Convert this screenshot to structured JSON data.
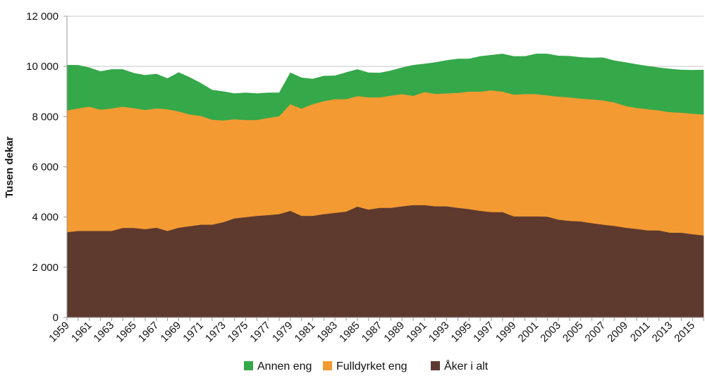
{
  "chart_data": {
    "type": "area",
    "stacked": true,
    "title": "",
    "xlabel": "",
    "ylabel": "Tusen dekar",
    "ylim": [
      0,
      12000
    ],
    "yticks": [
      0,
      2000,
      4000,
      6000,
      8000,
      10000,
      12000
    ],
    "ytick_labels": [
      "0",
      "2 000",
      "4 000",
      "6 000",
      "8 000",
      "10 000",
      "12 000"
    ],
    "grid": true,
    "legend_position": "bottom",
    "x": [
      1959,
      1960,
      1961,
      1962,
      1963,
      1964,
      1965,
      1966,
      1967,
      1968,
      1969,
      1970,
      1971,
      1972,
      1973,
      1974,
      1975,
      1976,
      1977,
      1978,
      1979,
      1980,
      1981,
      1982,
      1983,
      1984,
      1985,
      1986,
      1987,
      1988,
      1989,
      1990,
      1991,
      1992,
      1993,
      1994,
      1995,
      1996,
      1997,
      1998,
      1999,
      2000,
      2001,
      2002,
      2003,
      2004,
      2005,
      2006,
      2007,
      2008,
      2009,
      2010,
      2011,
      2012,
      2013,
      2014,
      2015,
      2016
    ],
    "xtick_labels": [
      "1959",
      "1961",
      "1963",
      "1965",
      "1967",
      "1969",
      "1971",
      "1973",
      "1975",
      "1977",
      "1979",
      "1981",
      "1983",
      "1985",
      "1987",
      "1989",
      "1991",
      "1993",
      "1995",
      "1997",
      "1999",
      "2001",
      "2003",
      "2005",
      "2007",
      "2009",
      "2011",
      "2013",
      "2015"
    ],
    "series": [
      {
        "name": "Åker i alt",
        "color": "#5e3a2e",
        "values": [
          3400,
          3450,
          3450,
          3450,
          3450,
          3570,
          3570,
          3520,
          3580,
          3450,
          3580,
          3640,
          3700,
          3700,
          3800,
          3950,
          4000,
          4050,
          4080,
          4120,
          4250,
          4050,
          4050,
          4120,
          4170,
          4220,
          4420,
          4300,
          4370,
          4370,
          4430,
          4480,
          4480,
          4430,
          4430,
          4370,
          4320,
          4250,
          4200,
          4200,
          4030,
          4030,
          4030,
          4020,
          3900,
          3850,
          3830,
          3760,
          3700,
          3650,
          3580,
          3530,
          3470,
          3470,
          3380,
          3380,
          3320,
          3270
        ]
      },
      {
        "name": "Fulldyrket eng",
        "color": "#f39a32",
        "values": [
          4850,
          4880,
          4950,
          4830,
          4880,
          4830,
          4770,
          4750,
          4750,
          4850,
          4630,
          4450,
          4330,
          4180,
          4050,
          3950,
          3870,
          3820,
          3870,
          3900,
          4250,
          4270,
          4450,
          4500,
          4530,
          4480,
          4400,
          4470,
          4400,
          4470,
          4470,
          4350,
          4500,
          4480,
          4500,
          4580,
          4680,
          4750,
          4850,
          4800,
          4850,
          4870,
          4870,
          4830,
          4900,
          4920,
          4890,
          4930,
          4950,
          4920,
          4850,
          4820,
          4830,
          4780,
          4800,
          4780,
          4800,
          4820
        ]
      },
      {
        "name": "Annen eng",
        "color": "#35a84a",
        "values": [
          1800,
          1720,
          1550,
          1520,
          1550,
          1480,
          1390,
          1380,
          1370,
          1220,
          1550,
          1470,
          1300,
          1180,
          1150,
          1020,
          1080,
          1050,
          1000,
          930,
          1250,
          1230,
          1000,
          1000,
          930,
          1060,
          1060,
          980,
          970,
          990,
          1050,
          1220,
          1120,
          1250,
          1310,
          1350,
          1300,
          1400,
          1400,
          1500,
          1520,
          1500,
          1600,
          1650,
          1620,
          1640,
          1640,
          1650,
          1700,
          1660,
          1730,
          1730,
          1710,
          1700,
          1720,
          1700,
          1730,
          1770
        ]
      }
    ],
    "legend": [
      "Annen eng",
      "Fulldyrket eng",
      "Åker i alt"
    ]
  }
}
